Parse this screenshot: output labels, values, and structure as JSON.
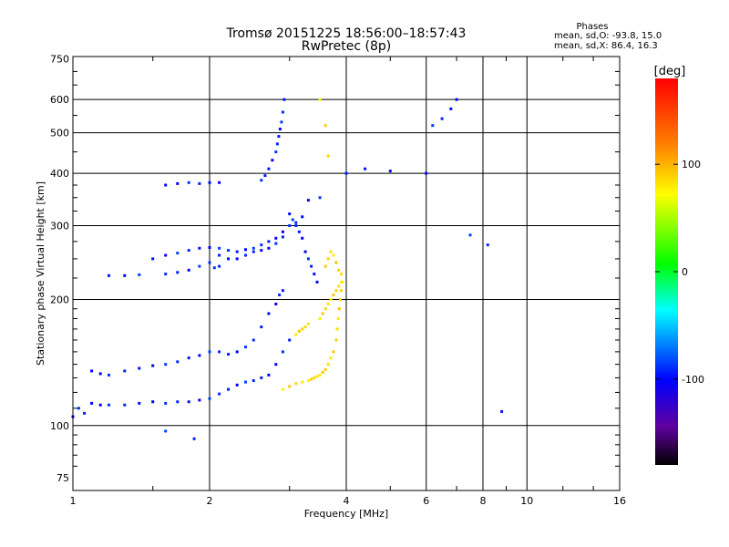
{
  "chart_data": {
    "type": "scatter",
    "title": "Tromsø 20151225 18:56:00–18:57:43",
    "subtitle": "RwPretec (8p)",
    "xlabel": "Frequency [MHz]",
    "ylabel": "Stationary phase Virtual Height [km]",
    "x_scale": "log",
    "y_scale": "log",
    "xlim": [
      1,
      16
    ],
    "ylim": [
      70,
      760
    ],
    "x_ticks": [
      1,
      2,
      4,
      6,
      8,
      10,
      16
    ],
    "y_ticks": [
      75,
      100,
      200,
      300,
      400,
      500,
      600,
      750
    ],
    "x_major_gridlines": [
      2,
      4,
      6,
      8,
      10
    ],
    "y_major_gridlines": [
      100,
      200,
      300,
      400,
      500,
      600
    ],
    "grid": true,
    "colorbar": {
      "label": "[deg]",
      "range": [
        -180,
        180
      ],
      "ticks": [
        100,
        0,
        -100
      ],
      "colors": [
        "#ff0000",
        "#ff8000",
        "#ffff00",
        "#00ff00",
        "#00ffff",
        "#0000ff",
        "#6000a0",
        "#000000"
      ]
    },
    "stats": {
      "heading": "Phases",
      "line_o": "mean, sd,O: -93.8, 15.0",
      "line_x": "mean, sd,X: 86.4, 16.3"
    },
    "series": [
      {
        "name": "O",
        "color_phase": -94,
        "x": [
          1.0,
          1.03,
          1.06,
          1.1,
          1.15,
          1.2,
          1.3,
          1.4,
          1.5,
          1.6,
          1.7,
          1.8,
          1.9,
          2.0,
          2.1,
          2.2,
          2.3,
          2.4,
          2.5,
          2.6,
          2.7,
          2.8,
          2.9,
          3.0,
          1.1,
          1.15,
          1.2,
          1.3,
          1.4,
          1.5,
          1.6,
          1.7,
          1.8,
          1.9,
          2.0,
          2.1,
          2.2,
          2.3,
          2.4,
          2.5,
          2.6,
          2.7,
          2.8,
          2.85,
          2.9,
          1.6,
          1.7,
          1.8,
          1.9,
          2.0,
          2.1,
          2.05,
          2.1,
          1.2,
          1.3,
          1.4,
          1.6,
          1.7,
          1.8,
          1.9,
          2.0,
          2.1,
          2.2,
          2.3,
          2.4,
          2.5,
          2.6,
          2.7,
          2.8,
          2.9,
          1.5,
          1.6,
          1.7,
          1.8,
          1.9,
          2.0,
          2.1,
          2.2,
          2.3,
          2.4,
          2.5,
          2.6,
          2.7,
          2.8,
          2.9,
          3.0,
          3.1,
          3.2,
          3.3,
          2.6,
          2.65,
          2.7,
          2.75,
          2.8,
          2.82,
          2.84,
          2.86,
          2.88,
          2.9,
          2.92,
          3.0,
          3.05,
          3.1,
          3.15,
          3.2,
          3.25,
          3.3,
          3.35,
          3.4,
          3.45,
          3.5,
          4.0,
          4.4,
          5.0,
          6.2,
          6.5,
          6.8,
          7.0,
          7.5,
          8.2,
          8.8,
          6.0,
          1.6,
          1.85
        ],
        "y": [
          105,
          110,
          107,
          113,
          112,
          112,
          112,
          113,
          114,
          113,
          114,
          114,
          115,
          116,
          119,
          122,
          125,
          127,
          128,
          130,
          132,
          140,
          150,
          160,
          135,
          133,
          132,
          135,
          137,
          139,
          140,
          142,
          145,
          147,
          150,
          150,
          148,
          150,
          154,
          160,
          172,
          185,
          195,
          205,
          210,
          375,
          378,
          380,
          378,
          380,
          380,
          238,
          240,
          228,
          228,
          229,
          230,
          232,
          235,
          240,
          245,
          255,
          250,
          250,
          255,
          260,
          262,
          265,
          272,
          282,
          250,
          255,
          258,
          262,
          265,
          266,
          265,
          262,
          260,
          263,
          265,
          270,
          275,
          280,
          290,
          300,
          305,
          315,
          345,
          385,
          395,
          410,
          430,
          450,
          470,
          490,
          510,
          530,
          560,
          600,
          320,
          310,
          300,
          290,
          280,
          260,
          250,
          240,
          230,
          220,
          350,
          400,
          410,
          405,
          520,
          540,
          570,
          600,
          285,
          270,
          108,
          400,
          97,
          93
        ]
      },
      {
        "name": "X",
        "color_phase": 86,
        "x": [
          2.9,
          3.0,
          3.1,
          3.2,
          3.3,
          3.35,
          3.4,
          3.45,
          3.5,
          3.55,
          3.6,
          3.65,
          3.7,
          3.75,
          3.8,
          3.82,
          3.84,
          3.86,
          3.88,
          3.9,
          3.92,
          3.5,
          3.55,
          3.6,
          3.65,
          3.7,
          3.75,
          3.8,
          3.85,
          3.9,
          3.6,
          3.65,
          3.7,
          3.75,
          3.8,
          3.85,
          3.9,
          3.1,
          3.15,
          3.2,
          3.25,
          3.3,
          3.5,
          3.6,
          3.65
        ],
        "y": [
          122,
          124,
          126,
          127,
          128,
          129,
          130,
          131,
          132,
          134,
          136,
          140,
          145,
          150,
          160,
          170,
          180,
          190,
          200,
          210,
          220,
          180,
          185,
          190,
          195,
          200,
          205,
          210,
          215,
          220,
          240,
          250,
          260,
          255,
          245,
          235,
          230,
          165,
          168,
          170,
          172,
          175,
          600,
          520,
          440
        ]
      }
    ]
  }
}
